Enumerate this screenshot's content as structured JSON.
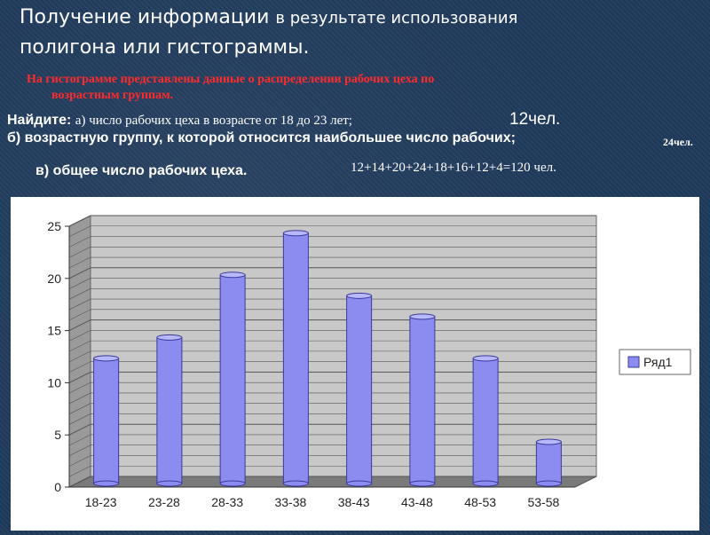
{
  "header": {
    "title_line1_part1": "Получение информации",
    "title_line1_part2": "в результате использования",
    "title_line2": "полигона или гистограммы."
  },
  "intro": {
    "line1": "На гистограмме представлены данные о распределении рабочих цеха по",
    "line2": "возрастным группам."
  },
  "tasks": {
    "find_label": "Найдите:",
    "a_text": "а) число рабочих цеха в возрасте от 18 до 23 лет;",
    "a_answer": "12чел.",
    "b_text": "б) возрастную группу, к которой относится наибольшее число рабочих;",
    "b_answer": "24чел.",
    "c_text": "в) общее число рабочих цеха.",
    "c_answer": "12+14+20+24+18+16+12+4=120 чел."
  },
  "colors": {
    "bar_fill": "#8c8cf0",
    "bar_top": "#b8b8ff",
    "bar_edge": "#3a3a9a",
    "grid": "#555555",
    "wall": "#c8c8c8"
  },
  "chart_data": {
    "type": "bar",
    "categories": [
      "18-23",
      "23-28",
      "28-33",
      "33-38",
      "38-43",
      "43-48",
      "48-53",
      "53-58"
    ],
    "series": [
      {
        "name": "Ряд1",
        "values": [
          12,
          14,
          20,
          24,
          18,
          16,
          12,
          4
        ]
      }
    ],
    "ylim": [
      0,
      25
    ],
    "yticks": [
      0,
      5,
      10,
      15,
      20,
      25
    ],
    "grid": true,
    "legend": "right",
    "style": "3d-cylinder"
  }
}
